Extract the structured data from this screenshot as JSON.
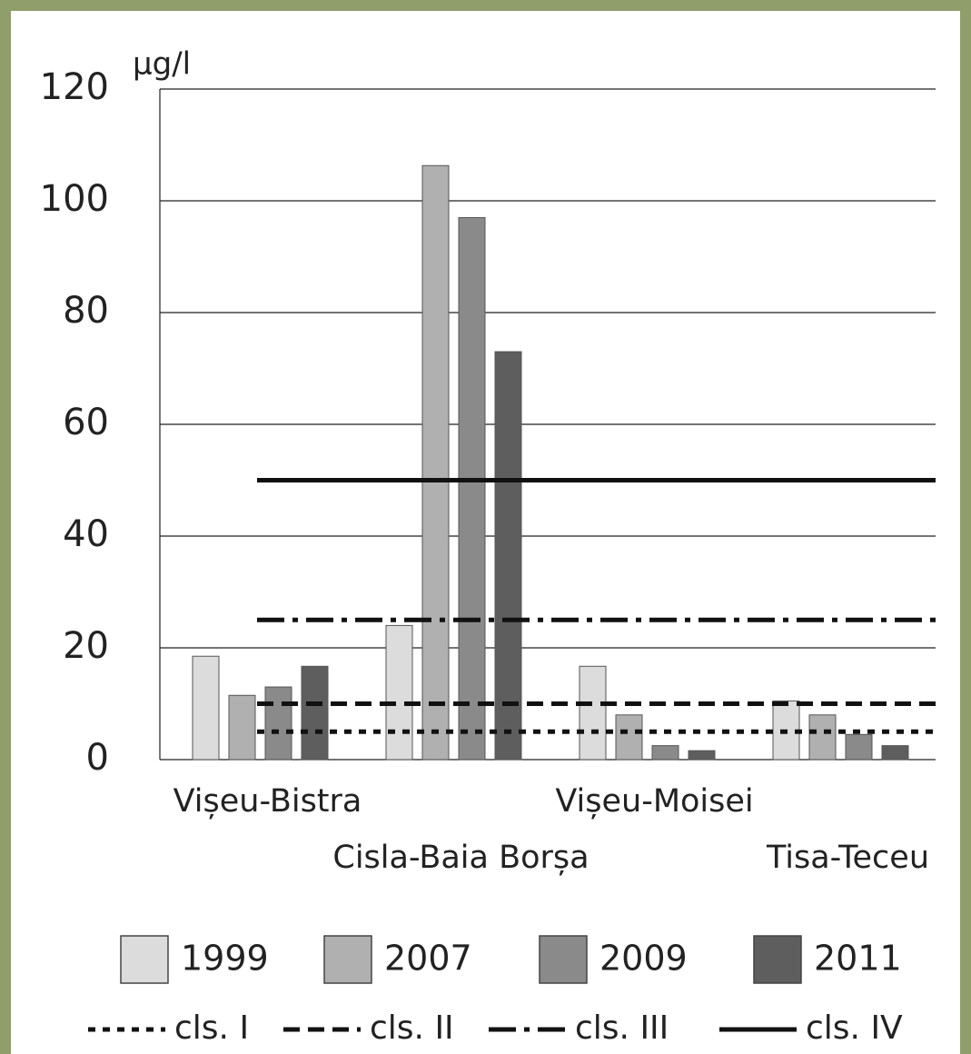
{
  "chart_data": {
    "type": "bar",
    "y_label": "µg/l",
    "categories": [
      "Vișeu-Bistra",
      "Cisla-Baia Borșa",
      "Vișeu-Moisei",
      "Tisa-Teceu"
    ],
    "series": [
      {
        "name": "1999",
        "color": "#dcdcdc",
        "values": [
          18.5,
          24,
          16.7,
          10.5
        ]
      },
      {
        "name": "2007",
        "color": "#b0b0b0",
        "values": [
          11.5,
          106.3,
          8,
          8
        ]
      },
      {
        "name": "2009",
        "color": "#8a8a8a",
        "values": [
          13,
          97,
          2.5,
          4.5
        ]
      },
      {
        "name": "2011",
        "color": "#5e5e5e",
        "values": [
          16.7,
          73,
          1.6,
          2.5
        ]
      }
    ],
    "reference_lines": [
      {
        "name": "cls. I",
        "value": 5,
        "style": "dotted"
      },
      {
        "name": "cls. II",
        "value": 10,
        "style": "dashed"
      },
      {
        "name": "cls. III",
        "value": 25,
        "style": "dashdot"
      },
      {
        "name": "cls. IV",
        "value": 50,
        "style": "solid"
      }
    ],
    "ylim": [
      0,
      120
    ],
    "yticks": [
      0,
      20,
      40,
      60,
      80,
      100,
      120
    ],
    "grid": true
  }
}
